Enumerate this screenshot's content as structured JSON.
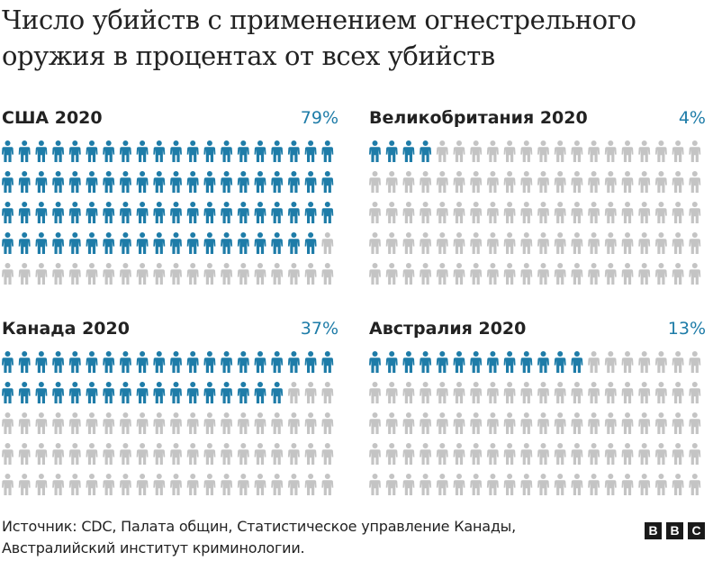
{
  "title": "Число убийств с применением огнестрельного оружия в процентах от всех убийств",
  "colors": {
    "highlight": "#1e7ca8",
    "muted": "#c4c4c4"
  },
  "icon_name": "person-icon",
  "chart_data": [
    {
      "type": "pictogram",
      "title": "США 2020",
      "value_label": "79%",
      "value": 79,
      "total": 100
    },
    {
      "type": "pictogram",
      "title": "Великобритания 2020",
      "value_label": "4%",
      "value": 4,
      "total": 100
    },
    {
      "type": "pictogram",
      "title": "Канада 2020",
      "value_label": "37%",
      "value": 37,
      "total": 100
    },
    {
      "type": "pictogram",
      "title": "Австралия 2020",
      "value_label": "13%",
      "value": 13,
      "total": 100
    }
  ],
  "source": "Источник: CDC, Палата общин, Статистическое управление Канады, Австралийский институт криминологии.",
  "logo": [
    "B",
    "B",
    "C"
  ]
}
